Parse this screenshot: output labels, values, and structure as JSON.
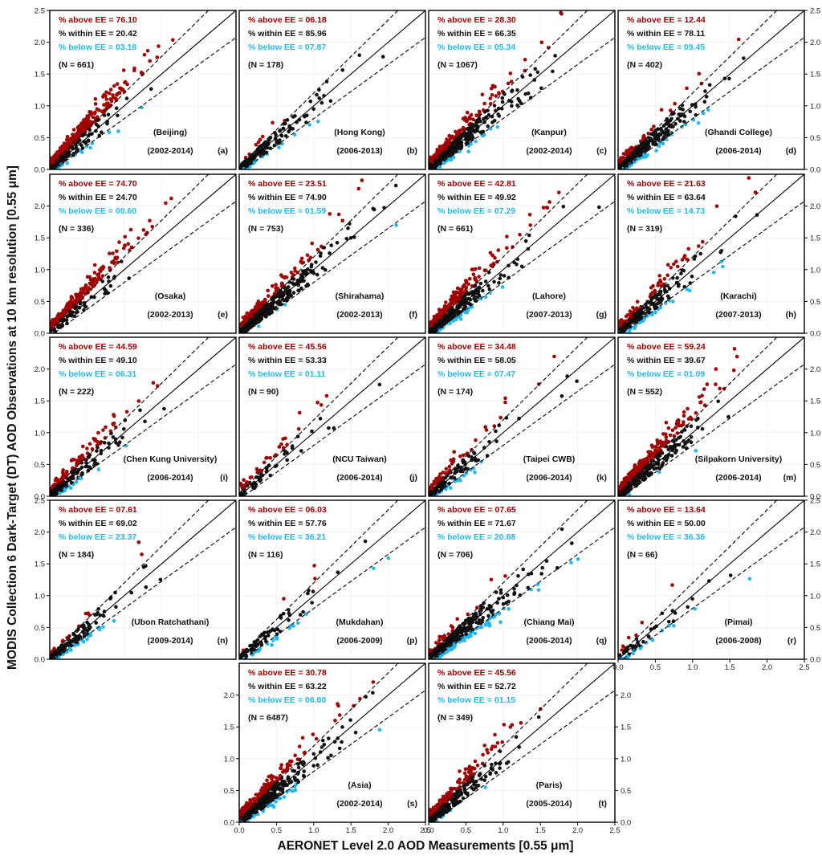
{
  "figure": {
    "ylabel": "MODIS Collection 6 Dark-Target (DT) AOD Observations at 10 km resolution [0.55 μm]",
    "xlabel": "AERONET Level 2.0 AOD Measurements [0.55 μm]"
  },
  "colors": {
    "above": "#a00000",
    "within": "#111111",
    "below": "#22b8ee"
  },
  "chart_data": [
    {
      "panel": "(a)",
      "site": "(Beijing)",
      "period": "(2002-2014)",
      "above": "% above EE = 76.10",
      "within": "% within EE = 20.42",
      "below": "% below EE = 03.18",
      "n": "(N = 661)",
      "type": "scatter",
      "xlim": [
        0,
        2.5
      ],
      "ylim": [
        0,
        2.5
      ],
      "ee_lines": true,
      "tick_values": [
        0,
        0.5,
        1.0,
        1.5,
        2.0,
        2.5
      ],
      "y_tick_labels": [
        "0.0",
        "0.5",
        "1.0",
        "1.5",
        "2.0",
        "2.5"
      ],
      "x_tick_labels": [],
      "y_ticks_side": "left",
      "pct_above": 76.1,
      "pct_within": 20.42,
      "pct_below": 3.18,
      "count": 661
    },
    {
      "panel": "(b)",
      "site": "(Hong Kong)",
      "period": "(2006-2013)",
      "above": "% above EE = 06.18",
      "within": "% within EE = 85.96",
      "below": "% below EE = 07.87",
      "n": "(N = 178)",
      "type": "scatter",
      "xlim": [
        0,
        2.5
      ],
      "ylim": [
        0,
        2.5
      ],
      "ee_lines": true,
      "tick_values": [
        0,
        0.5,
        1.0,
        1.5,
        2.0,
        2.5
      ],
      "y_tick_labels": [],
      "x_tick_labels": [],
      "y_ticks_side": "none",
      "pct_above": 6.18,
      "pct_within": 85.96,
      "pct_below": 7.87,
      "count": 178
    },
    {
      "panel": "(c)",
      "site": "(Kanpur)",
      "period": "(2002-2014)",
      "above": "% above EE = 28.30",
      "within": "% within EE = 66.35",
      "below": "% below EE = 05.34",
      "n": "(N = 1067)",
      "type": "scatter",
      "xlim": [
        0,
        2.5
      ],
      "ylim": [
        0,
        2.5
      ],
      "ee_lines": true,
      "tick_values": [
        0,
        0.5,
        1.0,
        1.5,
        2.0,
        2.5
      ],
      "y_tick_labels": [],
      "x_tick_labels": [],
      "y_ticks_side": "none",
      "pct_above": 28.3,
      "pct_within": 66.35,
      "pct_below": 5.34,
      "count": 1067
    },
    {
      "panel": "(d)",
      "site": "(Ghandi College)",
      "period": "(2006-2014)",
      "above": "% above EE = 12.44",
      "within": "% within EE = 78.11",
      "below": "% below EE = 09.45",
      "n": "(N = 402)",
      "type": "scatter",
      "xlim": [
        0,
        2.5
      ],
      "ylim": [
        0,
        2.5
      ],
      "ee_lines": true,
      "tick_values": [
        0,
        0.5,
        1.0,
        1.5,
        2.0,
        2.5
      ],
      "y_tick_labels": [
        "0.0",
        "0.5",
        "1.0",
        "1.5",
        "2.0",
        "2.5"
      ],
      "x_tick_labels": [],
      "y_ticks_side": "right",
      "pct_above": 12.44,
      "pct_within": 78.11,
      "pct_below": 9.45,
      "count": 402
    },
    {
      "panel": "(e)",
      "site": "(Osaka)",
      "period": "(2002-2013)",
      "above": "% above EE = 74.70",
      "within": "% within EE = 24.70",
      "below": "% below EE = 00.60",
      "n": "(N = 336)",
      "type": "scatter",
      "xlim": [
        0,
        2.5
      ],
      "ylim": [
        0,
        2.5
      ],
      "ee_lines": true,
      "tick_values": [
        0,
        0.5,
        1.0,
        1.5,
        2.0,
        2.5
      ],
      "y_tick_labels": [
        "0.0",
        "0.5",
        "1.0",
        "1.5",
        "2.0",
        ""
      ],
      "x_tick_labels": [],
      "y_ticks_side": "left",
      "pct_above": 74.7,
      "pct_within": 24.7,
      "pct_below": 0.6,
      "count": 336
    },
    {
      "panel": "(f)",
      "site": "(Shirahama)",
      "period": "(2002-2013)",
      "above": "% above EE = 23.51",
      "within": "% within EE = 74.90",
      "below": "% below EE = 01.59",
      "n": "(N = 753)",
      "type": "scatter",
      "xlim": [
        0,
        2.5
      ],
      "ylim": [
        0,
        2.5
      ],
      "ee_lines": true,
      "tick_values": [
        0,
        0.5,
        1.0,
        1.5,
        2.0,
        2.5
      ],
      "y_tick_labels": [],
      "x_tick_labels": [],
      "y_ticks_side": "none",
      "pct_above": 23.51,
      "pct_within": 74.9,
      "pct_below": 1.59,
      "count": 753
    },
    {
      "panel": "(g)",
      "site": "(Lahore)",
      "period": "(2007-2013)",
      "above": "% above EE = 42.81",
      "within": "% within EE = 49.92",
      "below": "% below EE = 07.29",
      "n": "(N = 661)",
      "type": "scatter",
      "xlim": [
        0,
        2.5
      ],
      "ylim": [
        0,
        2.5
      ],
      "ee_lines": true,
      "tick_values": [
        0,
        0.5,
        1.0,
        1.5,
        2.0,
        2.5
      ],
      "y_tick_labels": [],
      "x_tick_labels": [],
      "y_ticks_side": "none",
      "pct_above": 42.81,
      "pct_within": 49.92,
      "pct_below": 7.29,
      "count": 661
    },
    {
      "panel": "(h)",
      "site": "(Karachi)",
      "period": "(2007-2013)",
      "above": "% above EE = 21.63",
      "within": "% within EE = 63.64",
      "below": "% below EE = 14.73",
      "n": "(N = 319)",
      "type": "scatter",
      "xlim": [
        0,
        2.5
      ],
      "ylim": [
        0,
        2.5
      ],
      "ee_lines": true,
      "tick_values": [
        0,
        0.5,
        1.0,
        1.5,
        2.0,
        2.5
      ],
      "y_tick_labels": [
        "0.0",
        "0.5",
        "1.0",
        "1.5",
        "2.0",
        ""
      ],
      "x_tick_labels": [],
      "y_ticks_side": "right",
      "pct_above": 21.63,
      "pct_within": 63.64,
      "pct_below": 14.73,
      "count": 319
    },
    {
      "panel": "(i)",
      "site": "(Chen Kung University)",
      "period": "(2006-2014)",
      "above": "% above EE = 44.59",
      "within": "% within EE = 49.10",
      "below": "% below EE = 06.31",
      "n": "(N = 222)",
      "type": "scatter",
      "xlim": [
        0,
        2.5
      ],
      "ylim": [
        0,
        2.5
      ],
      "ee_lines": true,
      "tick_values": [
        0,
        0.5,
        1.0,
        1.5,
        2.0,
        2.5
      ],
      "y_tick_labels": [
        "0.0",
        "0.5",
        "1.0",
        "1.5",
        "2.0",
        ""
      ],
      "x_tick_labels": [],
      "y_ticks_side": "left",
      "pct_above": 44.59,
      "pct_within": 49.1,
      "pct_below": 6.31,
      "count": 222
    },
    {
      "panel": "(j)",
      "site": "(NCU Taiwan)",
      "period": "(2006-2014)",
      "above": "% above EE = 45.56",
      "within": "% within EE = 53.33",
      "below": "% below EE = 01.11",
      "n": "(N = 90)",
      "type": "scatter",
      "xlim": [
        0,
        2.5
      ],
      "ylim": [
        0,
        2.5
      ],
      "ee_lines": true,
      "tick_values": [
        0,
        0.5,
        1.0,
        1.5,
        2.0,
        2.5
      ],
      "y_tick_labels": [],
      "x_tick_labels": [],
      "y_ticks_side": "none",
      "pct_above": 45.56,
      "pct_within": 53.33,
      "pct_below": 1.11,
      "count": 90
    },
    {
      "panel": "(k)",
      "site": "(Taipei CWB)",
      "period": "(2006-2014)",
      "above": "% above EE = 34.48",
      "within": "% within EE = 58.05",
      "below": "% below EE = 07.47",
      "n": "(N = 174)",
      "type": "scatter",
      "xlim": [
        0,
        2.5
      ],
      "ylim": [
        0,
        2.5
      ],
      "ee_lines": true,
      "tick_values": [
        0,
        0.5,
        1.0,
        1.5,
        2.0,
        2.5
      ],
      "y_tick_labels": [],
      "x_tick_labels": [],
      "y_ticks_side": "none",
      "pct_above": 34.48,
      "pct_within": 58.05,
      "pct_below": 7.47,
      "count": 174
    },
    {
      "panel": "(m)",
      "site": "(Silpakorn University)",
      "period": "(2006-2014)",
      "above": "% above EE = 59.24",
      "within": "% within EE = 39.67",
      "below": "% below EE = 01.09",
      "n": "(N = 552)",
      "type": "scatter",
      "xlim": [
        0,
        2.5
      ],
      "ylim": [
        0,
        2.5
      ],
      "ee_lines": true,
      "tick_values": [
        0,
        0.5,
        1.0,
        1.5,
        2.0,
        2.5
      ],
      "y_tick_labels": [
        "0.0",
        "0.5",
        "1.0",
        "1.5",
        "2.0",
        ""
      ],
      "x_tick_labels": [],
      "y_ticks_side": "right",
      "pct_above": 59.24,
      "pct_within": 39.67,
      "pct_below": 1.09,
      "count": 552
    },
    {
      "panel": "(n)",
      "site": "(Ubon Ratchathani)",
      "period": "(2009-2014)",
      "above": "% above EE = 07.61",
      "within": "% within EE = 69.02",
      "below": "% below EE = 23.37",
      "n": "(N = 184)",
      "type": "scatter",
      "xlim": [
        0,
        2.5
      ],
      "ylim": [
        0,
        2.5
      ],
      "ee_lines": true,
      "tick_values": [
        0,
        0.5,
        1.0,
        1.5,
        2.0,
        2.5
      ],
      "y_tick_labels": [
        "0.0",
        "0.5",
        "1.0",
        "1.5",
        "2.0",
        "2.5"
      ],
      "x_tick_labels": [],
      "y_ticks_side": "left",
      "pct_above": 7.61,
      "pct_within": 69.02,
      "pct_below": 23.37,
      "count": 184
    },
    {
      "panel": "(p)",
      "site": "(Mukdahan)",
      "period": "(2006-2009)",
      "above": "% above EE = 06.03",
      "within": "% within EE = 57.76",
      "below": "% below EE = 36.21",
      "n": "(N = 116)",
      "type": "scatter",
      "xlim": [
        0,
        2.5
      ],
      "ylim": [
        0,
        2.5
      ],
      "ee_lines": true,
      "tick_values": [
        0,
        0.5,
        1.0,
        1.5,
        2.0,
        2.5
      ],
      "y_tick_labels": [],
      "x_tick_labels": [],
      "y_ticks_side": "none",
      "pct_above": 6.03,
      "pct_within": 57.76,
      "pct_below": 36.21,
      "count": 116
    },
    {
      "panel": "(q)",
      "site": "(Chiang Mai)",
      "period": "(2006-2014)",
      "above": "% above EE = 07.65",
      "within": "% within EE = 71.67",
      "below": "% below EE = 20.68",
      "n": "(N = 706)",
      "type": "scatter",
      "xlim": [
        0,
        2.5
      ],
      "ylim": [
        0,
        2.5
      ],
      "ee_lines": true,
      "tick_values": [
        0,
        0.5,
        1.0,
        1.5,
        2.0,
        2.5
      ],
      "y_tick_labels": [],
      "x_tick_labels": [],
      "y_ticks_side": "none",
      "pct_above": 7.65,
      "pct_within": 71.67,
      "pct_below": 20.68,
      "count": 706
    },
    {
      "panel": "(r)",
      "site": "(Pimai)",
      "period": "(2006-2008)",
      "above": "% above EE = 13.64",
      "within": "% within EE = 50.00",
      "below": "% below EE = 36.36",
      "n": "(N = 66)",
      "type": "scatter",
      "xlim": [
        0,
        2.5
      ],
      "ylim": [
        0,
        2.5
      ],
      "ee_lines": true,
      "tick_values": [
        0,
        0.5,
        1.0,
        1.5,
        2.0,
        2.5
      ],
      "y_tick_labels": [
        "0.0",
        "0.5",
        "1.0",
        "1.5",
        "2.0",
        "2.5"
      ],
      "x_tick_labels": [
        "0.0",
        "0.5",
        "1.0",
        "1.5",
        "2.0",
        "2.5"
      ],
      "y_ticks_side": "right",
      "pct_above": 13.64,
      "pct_within": 50.0,
      "pct_below": 36.36,
      "count": 66
    },
    {
      "panel": "(s)",
      "site": "(Asia)",
      "period": "(2002-2014)",
      "above": "% above EE = 30.78",
      "within": "% within EE = 63.22",
      "below": "% below EE = 06.00",
      "n": "(N = 6487)",
      "type": "scatter",
      "xlim": [
        0,
        2.5
      ],
      "ylim": [
        0,
        2.5
      ],
      "ee_lines": true,
      "tick_values": [
        0,
        0.5,
        1.0,
        1.5,
        2.0,
        2.5
      ],
      "y_tick_labels": [
        "0.0",
        "0.5",
        "1.0",
        "1.5",
        "2.0",
        ""
      ],
      "x_tick_labels": [
        "0.0",
        "0.5",
        "1.0",
        "1.5",
        "2.0",
        "2.5"
      ],
      "y_ticks_side": "left",
      "pct_above": 30.78,
      "pct_within": 63.22,
      "pct_below": 6.0,
      "count": 6487
    },
    {
      "panel": "(t)",
      "site": "(Paris)",
      "period": "(2005-2014)",
      "above": "% above EE = 45.56",
      "within": "% within EE = 52.72",
      "below": "% below EE = 01.15",
      "n": "(N = 349)",
      "type": "scatter",
      "xlim": [
        0,
        2.5
      ],
      "ylim": [
        0,
        2.5
      ],
      "ee_lines": true,
      "tick_values": [
        0,
        0.5,
        1.0,
        1.5,
        2.0,
        2.5
      ],
      "y_tick_labels": [
        "0.0",
        "0.5",
        "1.0",
        "1.5",
        "2.0",
        ""
      ],
      "x_tick_labels": [
        "0.0",
        "0.5",
        "1.0",
        "1.5",
        "2.0",
        "2.5"
      ],
      "y_ticks_side": "right",
      "pct_above": 45.56,
      "pct_within": 52.72,
      "pct_below": 1.15,
      "count": 349
    }
  ]
}
